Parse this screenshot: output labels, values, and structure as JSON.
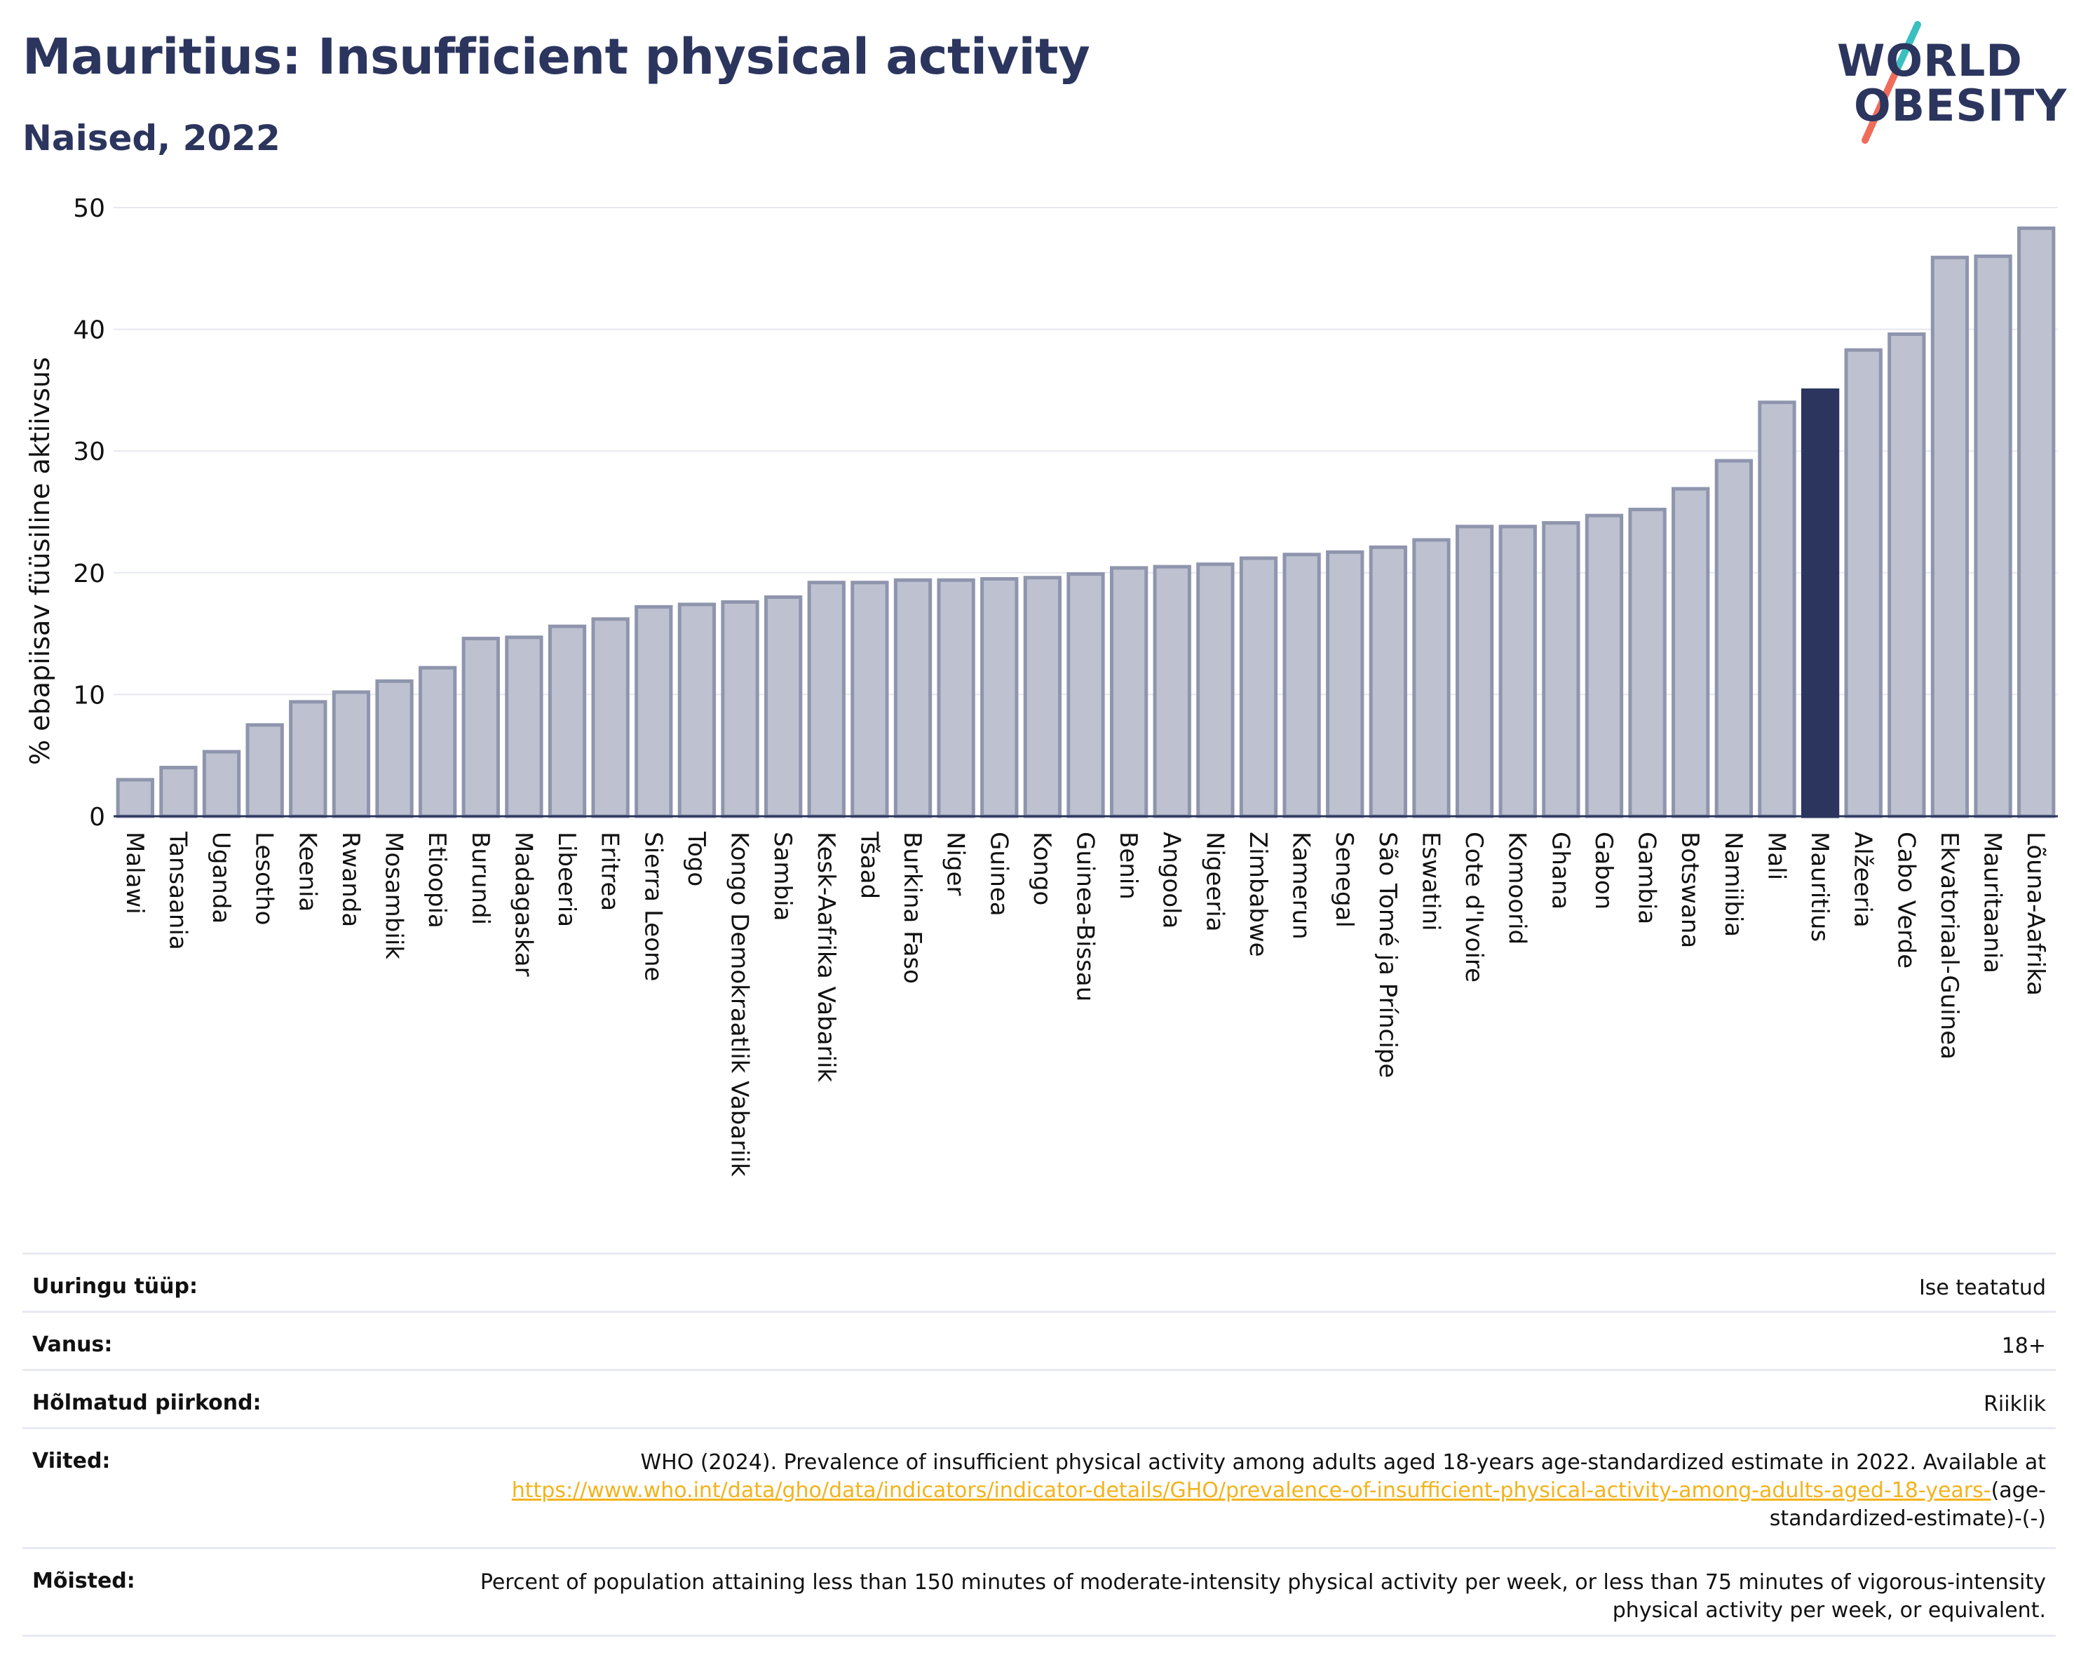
{
  "header": {
    "title": "Mauritius: Insufficient physical activity",
    "subtitle": "Naised, 2022"
  },
  "logo": {
    "line1": "WORLD",
    "line2": "OBESITY",
    "text_color": "#2b355e",
    "slash_colors": [
      "#3bbfbf",
      "#ef6c5b"
    ]
  },
  "chart_data": {
    "type": "bar",
    "ylabel": "% ebapiisav füüsiline aktiivsus",
    "ylim": [
      0,
      50
    ],
    "yticks": [
      0,
      10,
      20,
      30,
      40,
      50
    ],
    "grid": true,
    "highlight_category": "Mauritius",
    "bar_color": "#bec2d0",
    "bar_edge_color": "#8f95ad",
    "highlight_color": "#2b355e",
    "categories": [
      "Malawi",
      "Tansaania",
      "Uganda",
      "Lesotho",
      "Keenia",
      "Rwanda",
      "Mosambiik",
      "Etioopia",
      "Burundi",
      "Madagaskar",
      "Libeeria",
      "Eritrea",
      "Sierra Leone",
      "Togo",
      "Kongo Demokraatlik Vabariik",
      "Sambia",
      "Kesk-Aafrika Vabariik",
      "Tšaad",
      "Burkina Faso",
      "Niger",
      "Guinea",
      "Kongo",
      "Guinea-Bissau",
      "Benin",
      "Angoola",
      "Nigeeria",
      "Zimbabwe",
      "Kamerun",
      "Senegal",
      "São Tomé ja Príncipe",
      "Eswatini",
      "Cote d'Ivoire",
      "Komoorid",
      "Ghana",
      "Gabon",
      "Gambia",
      "Botswana",
      "Namiibia",
      "Mali",
      "Mauritius",
      "Alžeeria",
      "Cabo Verde",
      "Ekvatoriaal-Guinea",
      "Mauritaania",
      "Lõuna-Aafrika"
    ],
    "values": [
      3.0,
      4.0,
      5.3,
      7.5,
      9.4,
      10.2,
      11.1,
      12.2,
      14.6,
      14.7,
      15.6,
      16.2,
      17.2,
      17.4,
      17.6,
      18.0,
      19.2,
      19.2,
      19.4,
      19.4,
      19.5,
      19.6,
      19.9,
      20.4,
      20.5,
      20.7,
      21.2,
      21.5,
      21.7,
      22.1,
      22.7,
      23.8,
      23.8,
      24.1,
      24.7,
      25.2,
      26.9,
      29.2,
      34.0,
      35.0,
      38.3,
      39.6,
      45.9,
      46.0,
      48.3
    ]
  },
  "info": {
    "rows": [
      {
        "label": "Uuringu tüüp:",
        "value": "Ise teatatud"
      },
      {
        "label": "Vanus:",
        "value": "18+"
      },
      {
        "label": "Hõlmatud piirkond:",
        "value": "Riiklik"
      },
      {
        "label": "Viited:",
        "value_prefix": "WHO (2024). Prevalence of insufficient physical activity among adults aged 18-years age-standardized estimate in 2022. Available at",
        "link": "https://www.who.int/data/gho/data/indicators/indicator-details/GHO/prevalence-of-insufficient-physical-activity-among-adults-aged-18-years-",
        "value_suffix": "(age-standardized-estimate)-(-)"
      },
      {
        "label": "Mõisted:",
        "value": "Percent of population attaining less than 150 minutes of moderate-intensity physical activity per week, or less than 75 minutes of vigorous-intensity physical activity per week, or equivalent."
      }
    ]
  }
}
